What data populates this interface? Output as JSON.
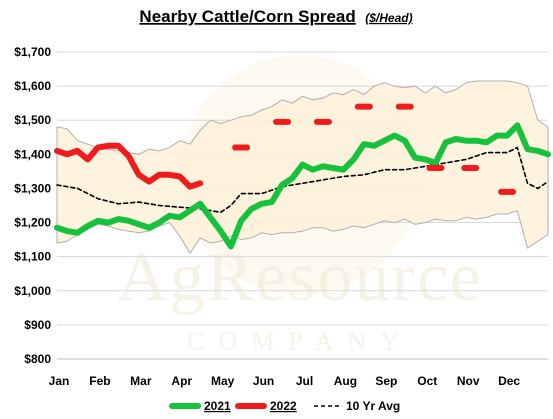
{
  "chart_data": {
    "type": "line",
    "title": "Nearby Cattle/Corn Spread",
    "subtitle": "($/Head)",
    "watermark": [
      "AgResource",
      "COMPANY"
    ],
    "ylim": [
      800,
      1700
    ],
    "yticks": [
      800,
      900,
      1000,
      1100,
      1200,
      1300,
      1400,
      1500,
      1600,
      1700
    ],
    "ytick_labels": [
      "$800",
      "$900",
      "$1,000",
      "$1,100",
      "$1,200",
      "$1,300",
      "$1,400",
      "$1,500",
      "$1,600",
      "$1,700"
    ],
    "xlim": [
      0,
      12
    ],
    "xtick_labels": [
      "Jan",
      "Feb",
      "Mar",
      "Apr",
      "May",
      "Jun",
      "Jul",
      "Aug",
      "Sep",
      "Oct",
      "Nov",
      "Dec"
    ],
    "grid": true,
    "legend_position": "bottom",
    "range_band": {
      "color": "#fdf1d8",
      "x": [
        0,
        0.25,
        0.5,
        0.75,
        1,
        1.25,
        1.5,
        1.75,
        2,
        2.25,
        2.5,
        2.75,
        3,
        3.25,
        3.5,
        3.75,
        4,
        4.25,
        4.5,
        4.75,
        5,
        5.25,
        5.5,
        5.75,
        6,
        6.25,
        6.5,
        6.75,
        7,
        7.25,
        7.5,
        7.75,
        8,
        8.25,
        8.5,
        8.75,
        9,
        9.25,
        9.5,
        9.75,
        10,
        10.25,
        10.5,
        10.75,
        11,
        11.25,
        11.5,
        11.75,
        12
      ],
      "high": [
        1480,
        1475,
        1440,
        1430,
        1420,
        1415,
        1410,
        1405,
        1400,
        1415,
        1410,
        1420,
        1440,
        1430,
        1470,
        1500,
        1490,
        1500,
        1510,
        1515,
        1530,
        1540,
        1560,
        1550,
        1570,
        1560,
        1565,
        1580,
        1575,
        1590,
        1575,
        1600,
        1610,
        1600,
        1595,
        1600,
        1580,
        1600,
        1580,
        1590,
        1610,
        1615,
        1615,
        1615,
        1615,
        1610,
        1600,
        1500,
        1480
      ],
      "low": [
        1140,
        1145,
        1165,
        1180,
        1195,
        1190,
        1180,
        1175,
        1170,
        1175,
        1190,
        1200,
        1160,
        1110,
        1155,
        1140,
        1145,
        1160,
        1150,
        1155,
        1170,
        1165,
        1170,
        1170,
        1175,
        1185,
        1185,
        1175,
        1180,
        1190,
        1185,
        1195,
        1205,
        1200,
        1210,
        1195,
        1200,
        1210,
        1205,
        1205,
        1215,
        1210,
        1215,
        1225,
        1225,
        1235,
        1125,
        1145,
        1165
      ]
    },
    "series": [
      {
        "name": "2021",
        "color": "#16c23c",
        "style": "solid-thick",
        "x": [
          0,
          0.25,
          0.5,
          0.75,
          1,
          1.25,
          1.5,
          1.75,
          2,
          2.25,
          2.5,
          2.75,
          3,
          3.25,
          3.5,
          3.75,
          4,
          4.25,
          4.5,
          4.75,
          5,
          5.25,
          5.5,
          5.75,
          6,
          6.25,
          6.5,
          6.75,
          7,
          7.25,
          7.5,
          7.75,
          8,
          8.25,
          8.5,
          8.75,
          9,
          9.25,
          9.5,
          9.75,
          10,
          10.25,
          10.5,
          10.75,
          11,
          11.25,
          11.5,
          11.75,
          12
        ],
        "values": [
          1185,
          1175,
          1170,
          1190,
          1205,
          1200,
          1210,
          1205,
          1195,
          1185,
          1200,
          1220,
          1215,
          1235,
          1255,
          1215,
          1175,
          1130,
          1205,
          1240,
          1255,
          1260,
          1310,
          1330,
          1370,
          1355,
          1365,
          1360,
          1355,
          1385,
          1430,
          1425,
          1440,
          1455,
          1440,
          1390,
          1385,
          1375,
          1435,
          1445,
          1440,
          1440,
          1435,
          1455,
          1455,
          1485,
          1415,
          1410,
          1400
        ]
      },
      {
        "name": "2022",
        "color": "#ee1c1c",
        "style": "solid-thick",
        "x": [
          0,
          0.25,
          0.5,
          0.75,
          1,
          1.25,
          1.5,
          1.75,
          2,
          2.25,
          2.5,
          2.75,
          3,
          3.25,
          3.5
        ],
        "values": [
          1410,
          1400,
          1410,
          1385,
          1420,
          1425,
          1425,
          1395,
          1340,
          1320,
          1340,
          1340,
          1335,
          1305,
          1315
        ]
      },
      {
        "name": "10 Yr Avg",
        "color": "#000000",
        "style": "dashed",
        "x": [
          0,
          0.5,
          1,
          1.5,
          2,
          2.5,
          3,
          3.5,
          4,
          4.25,
          4.5,
          5,
          5.5,
          6,
          6.5,
          7,
          7.5,
          8,
          8.5,
          9,
          9.5,
          10,
          10.5,
          11,
          11.25,
          11.5,
          11.75,
          12
        ],
        "values": [
          1310,
          1300,
          1270,
          1255,
          1260,
          1250,
          1245,
          1240,
          1230,
          1250,
          1285,
          1285,
          1305,
          1315,
          1325,
          1335,
          1340,
          1355,
          1355,
          1365,
          1375,
          1385,
          1405,
          1405,
          1420,
          1315,
          1300,
          1320
        ]
      }
    ],
    "futures_markers": {
      "color": "#ee1c1c",
      "points": [
        {
          "x": 4.5,
          "y": 1420
        },
        {
          "x": 5.5,
          "y": 1495
        },
        {
          "x": 6.5,
          "y": 1495
        },
        {
          "x": 7.5,
          "y": 1540
        },
        {
          "x": 8.5,
          "y": 1540
        },
        {
          "x": 9.25,
          "y": 1360
        },
        {
          "x": 10.1,
          "y": 1360
        },
        {
          "x": 11,
          "y": 1290
        }
      ]
    }
  }
}
